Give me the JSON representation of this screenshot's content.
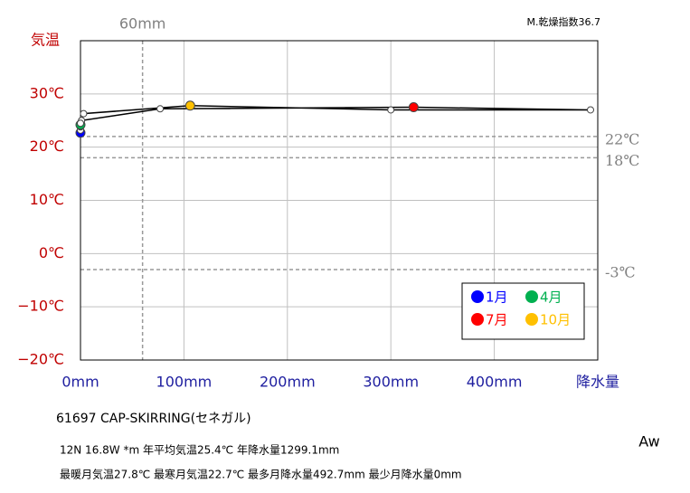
{
  "chart_data": {
    "type": "climograph",
    "annotation": "M.乾燥指数36.7",
    "ylabel": "気温",
    "xlabel": "降水量",
    "xlim": [
      0,
      500
    ],
    "ylim": [
      -20,
      40
    ],
    "xticks": [
      {
        "value": 0,
        "label": "0mm"
      },
      {
        "value": 100,
        "label": "100mm"
      },
      {
        "value": 200,
        "label": "200mm"
      },
      {
        "value": 300,
        "label": "300mm"
      },
      {
        "value": 400,
        "label": "400mm"
      }
    ],
    "yticks": [
      {
        "value": -20,
        "label": "−20℃"
      },
      {
        "value": -10,
        "label": "−10℃"
      },
      {
        "value": 0,
        "label": "0℃"
      },
      {
        "value": 10,
        "label": "10℃"
      },
      {
        "value": 20,
        "label": "20℃"
      },
      {
        "value": 30,
        "label": "30℃"
      }
    ],
    "grid": true,
    "ref_lines_y": [
      {
        "value": 22,
        "label": "22℃"
      },
      {
        "value": 18,
        "label": "18℃"
      },
      {
        "value": -3,
        "label": "-3℃"
      }
    ],
    "ref_lines_x": [
      {
        "value": 60,
        "label": "60mm"
      }
    ],
    "x": [
      0,
      0,
      0,
      0,
      1,
      77,
      322,
      493,
      300,
      106,
      3,
      0
    ],
    "values": [
      22.7,
      23.2,
      23.8,
      24.2,
      25.0,
      27.2,
      27.5,
      27.0,
      27.0,
      27.8,
      26.3,
      24.5
    ],
    "point_colors": [
      "#0000ff",
      "#ffffff",
      "#ffffff",
      "#00b050",
      "#ffffff",
      "#ffffff",
      "#ff0000",
      "#ffffff",
      "#ffffff",
      "#ffc000",
      "#ffffff",
      "#ffffff"
    ],
    "line_color": "#000000",
    "legend": [
      {
        "label": "1月",
        "color": "#0000ff"
      },
      {
        "label": "4月",
        "color": "#00b050"
      },
      {
        "label": "7月",
        "color": "#ff0000"
      },
      {
        "label": "10月",
        "color": "#ffc000"
      }
    ],
    "station": "61697  CAP-SKIRRING(セネガル)",
    "info_line1": "12N  16.8W *m  年平均気温25.4℃ 年降水量1299.1mm",
    "info_line2": "最暖月気温27.8℃ 最寒月気温22.7℃ 最多月降水量492.7mm 最少月降水量0mm",
    "climate": "Aw"
  }
}
